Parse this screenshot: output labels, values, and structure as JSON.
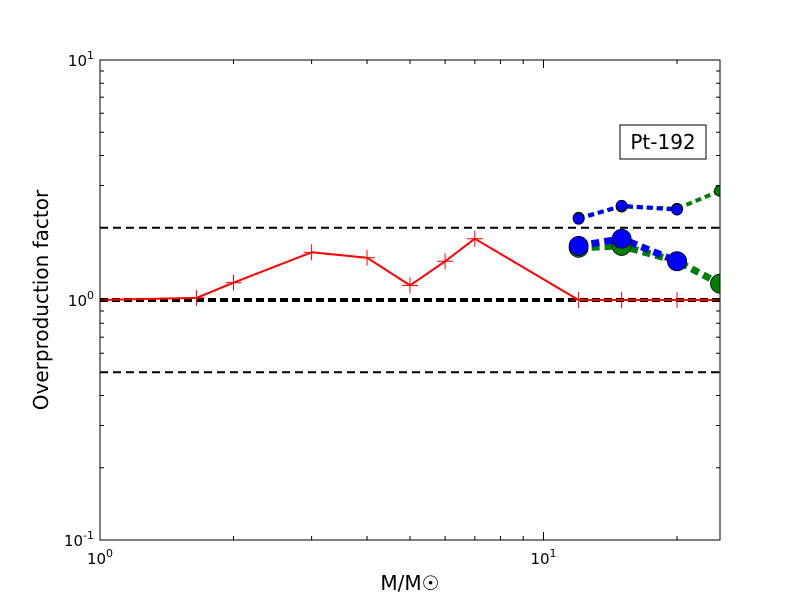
{
  "chart_data": {
    "type": "line",
    "xscale": "log",
    "yscale": "log",
    "xlim": [
      1,
      25
    ],
    "ylim": [
      0.1,
      10
    ],
    "xlabel": "M/M☉",
    "ylabel": "Overproduction factor",
    "grid": false,
    "annotation": "Pt-192",
    "x_ticks": [
      {
        "value": 1,
        "base": "10",
        "exp": "0"
      },
      {
        "value": 10,
        "base": "10",
        "exp": "1"
      }
    ],
    "y_ticks": [
      {
        "value": 0.1,
        "base": "10",
        "exp": "-1"
      },
      {
        "value": 1,
        "base": "10",
        "exp": "0"
      },
      {
        "value": 10,
        "base": "10",
        "exp": "1"
      }
    ],
    "reference_lines": [
      {
        "y": 2,
        "style": "dashed",
        "color": "#000000"
      },
      {
        "y": 1,
        "style": "dashed-thick",
        "color": "#000000"
      },
      {
        "y": 0.5,
        "style": "dashed",
        "color": "#000000"
      }
    ],
    "series": [
      {
        "style": "solid",
        "color": "#ff0000",
        "marker": "plus",
        "x": [
          1.0,
          1.65,
          2.0,
          3.0,
          4.0,
          5.0,
          6.0,
          7.0,
          12.0,
          15.0,
          20.0,
          25.0
        ],
        "y": [
          1.0,
          1.02,
          1.18,
          1.58,
          1.5,
          1.15,
          1.45,
          1.8,
          1.0,
          1.0,
          1.0,
          1.0
        ]
      },
      {
        "style": "dashed-thin",
        "color": "#ff0000",
        "marker": "none",
        "x": [
          12.0,
          25.0
        ],
        "y": [
          1.0,
          1.0
        ]
      },
      {
        "style": "dotted",
        "color": "#008000",
        "marker": "circle-small",
        "x": [
          12.0,
          15.0,
          20.0,
          25.0
        ],
        "y": [
          2.2,
          2.45,
          2.4,
          2.85
        ]
      },
      {
        "style": "dotted",
        "color": "#0000ff",
        "marker": "circle-small",
        "x": [
          12.0,
          15.0,
          20.0
        ],
        "y": [
          2.18,
          2.47,
          2.38
        ]
      },
      {
        "style": "dotted-thick",
        "color": "#008000",
        "marker": "circle-large",
        "x": [
          12.0,
          15.0,
          20.0,
          25.0
        ],
        "y": [
          1.65,
          1.68,
          1.45,
          1.17
        ]
      },
      {
        "style": "dotted-thick",
        "color": "#0000ff",
        "marker": "circle-large",
        "x": [
          12.0,
          15.0,
          20.0
        ],
        "y": [
          1.68,
          1.8,
          1.45
        ]
      }
    ]
  }
}
